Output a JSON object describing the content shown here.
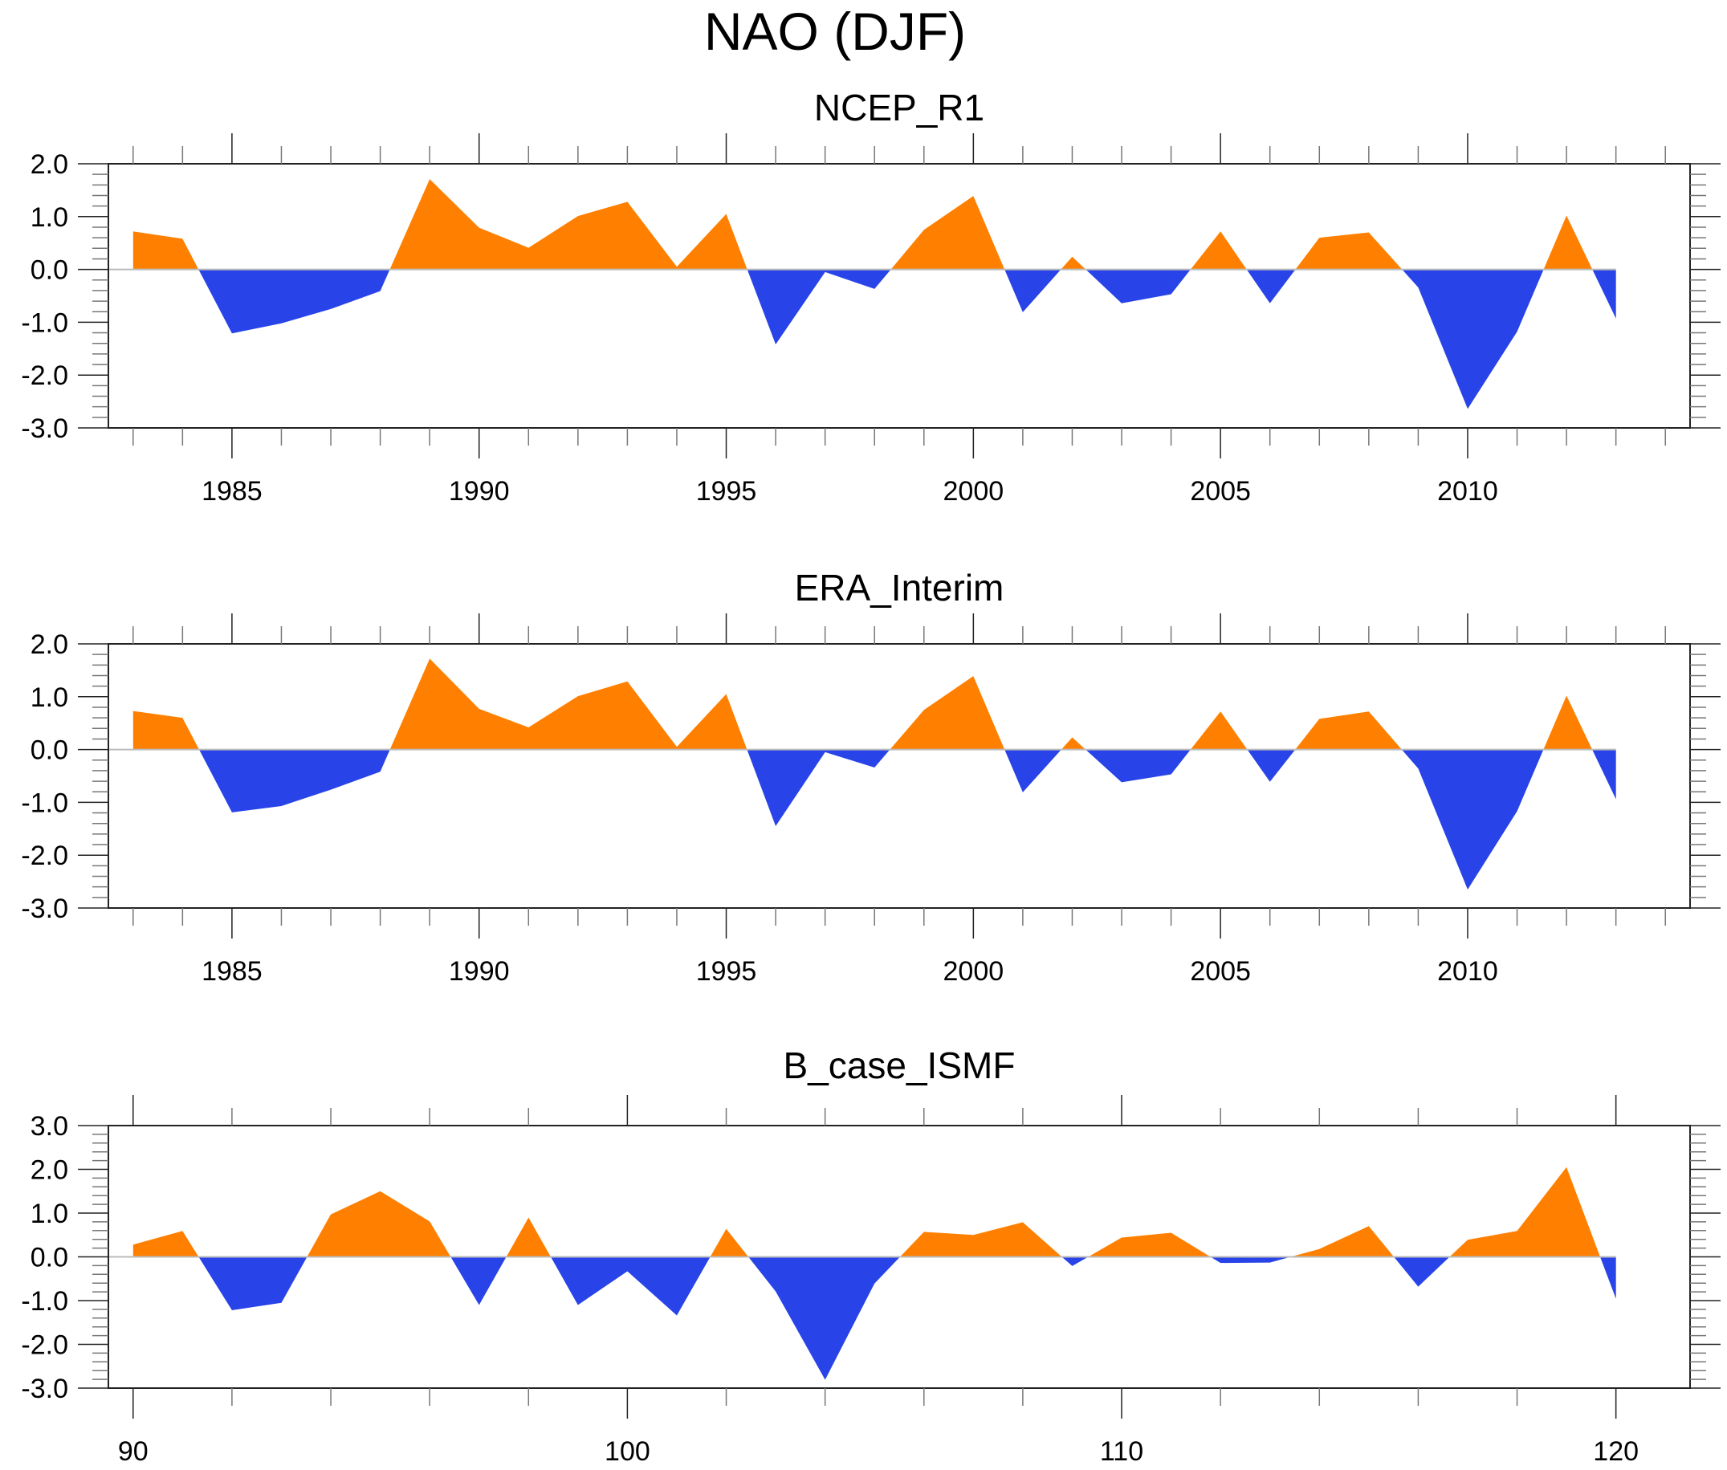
{
  "figure": {
    "title": "NAO (DJF)"
  },
  "colors": {
    "positive": "#ff8000",
    "negative": "#2844e8",
    "zero_line": "#bbbbbb",
    "axis": "#222222"
  },
  "chart_data": [
    {
      "type": "area",
      "title": "NCEP_R1",
      "xlabel": "",
      "ylabel": "",
      "x": [
        1983,
        1984,
        1985,
        1986,
        1987,
        1988,
        1989,
        1990,
        1991,
        1992,
        1993,
        1994,
        1995,
        1996,
        1997,
        1998,
        1999,
        2000,
        2001,
        2002,
        2003,
        2004,
        2005,
        2006,
        2007,
        2008,
        2009,
        2010,
        2011,
        2012,
        2013
      ],
      "values": [
        0.72,
        0.58,
        -1.21,
        -1.02,
        -0.75,
        -0.41,
        1.71,
        0.79,
        0.41,
        1.01,
        1.28,
        0.05,
        1.05,
        -1.42,
        -0.05,
        -0.37,
        0.75,
        1.39,
        -0.81,
        0.24,
        -0.64,
        -0.47,
        0.72,
        -0.64,
        0.6,
        0.7,
        -0.34,
        -2.64,
        -1.18,
        1.02,
        -0.93
      ],
      "xlim": [
        1982.5,
        2014.5
      ],
      "ylim": [
        -3.0,
        2.0
      ],
      "x_major_ticks": [
        1985,
        1990,
        1995,
        2000,
        2005,
        2010
      ],
      "x_tick_labels": [
        "1985",
        "1990",
        "1995",
        "2000",
        "2005",
        "2010"
      ],
      "x_minor_step": 1,
      "y_ticks": [
        2.0,
        1.0,
        0.0,
        -1.0,
        -2.0,
        -3.0
      ],
      "y_tick_labels": [
        "2.0",
        "1.0",
        "0.0",
        "-1.0",
        "-2.0",
        "-3.0"
      ],
      "y_minor_step": 0.2,
      "fill_above_zero": "positive",
      "fill_below_zero": "negative",
      "grid": false
    },
    {
      "type": "area",
      "title": "ERA_Interim",
      "xlabel": "",
      "ylabel": "",
      "x": [
        1983,
        1984,
        1985,
        1986,
        1987,
        1988,
        1989,
        1990,
        1991,
        1992,
        1993,
        1994,
        1995,
        1996,
        1997,
        1998,
        1999,
        2000,
        2001,
        2002,
        2003,
        2004,
        2005,
        2006,
        2007,
        2008,
        2009,
        2010,
        2011,
        2012,
        2013
      ],
      "values": [
        0.73,
        0.6,
        -1.19,
        -1.07,
        -0.76,
        -0.42,
        1.72,
        0.77,
        0.42,
        1.01,
        1.29,
        0.05,
        1.05,
        -1.45,
        -0.05,
        -0.34,
        0.75,
        1.39,
        -0.81,
        0.23,
        -0.62,
        -0.47,
        0.72,
        -0.61,
        0.58,
        0.72,
        -0.36,
        -2.65,
        -1.17,
        1.02,
        -0.94
      ],
      "xlim": [
        1982.5,
        2014.5
      ],
      "ylim": [
        -3.0,
        2.0
      ],
      "x_major_ticks": [
        1985,
        1990,
        1995,
        2000,
        2005,
        2010
      ],
      "x_tick_labels": [
        "1985",
        "1990",
        "1995",
        "2000",
        "2005",
        "2010"
      ],
      "x_minor_step": 1,
      "y_ticks": [
        2.0,
        1.0,
        0.0,
        -1.0,
        -2.0,
        -3.0
      ],
      "y_tick_labels": [
        "2.0",
        "1.0",
        "0.0",
        "-1.0",
        "-2.0",
        "-3.0"
      ],
      "y_minor_step": 0.2,
      "fill_above_zero": "positive",
      "fill_below_zero": "negative",
      "grid": false
    },
    {
      "type": "area",
      "title": "B_case_ISMF",
      "xlabel": "",
      "ylabel": "",
      "x": [
        90,
        91,
        92,
        93,
        94,
        95,
        96,
        97,
        98,
        99,
        100,
        101,
        102,
        103,
        104,
        105,
        106,
        107,
        108,
        109,
        110,
        111,
        112,
        113,
        114,
        115,
        116,
        117,
        118,
        119,
        120
      ],
      "values": [
        0.28,
        0.59,
        -1.22,
        -1.05,
        0.97,
        1.5,
        0.81,
        -1.1,
        0.9,
        -1.1,
        -0.33,
        -1.34,
        0.64,
        -0.79,
        -2.81,
        -0.61,
        0.57,
        0.5,
        0.79,
        -0.21,
        0.44,
        0.55,
        -0.14,
        -0.13,
        0.18,
        0.7,
        -0.68,
        0.39,
        0.59,
        2.05,
        -0.96
      ],
      "xlim": [
        89.5,
        121.5
      ],
      "ylim": [
        -3.0,
        3.0
      ],
      "x_major_ticks": [
        90,
        100,
        110,
        120
      ],
      "x_tick_labels": [
        "90",
        "100",
        "110",
        "120"
      ],
      "x_minor_step": 2,
      "y_ticks": [
        3.0,
        2.0,
        1.0,
        0.0,
        -1.0,
        -2.0,
        -3.0
      ],
      "y_tick_labels": [
        "3.0",
        "2.0",
        "1.0",
        "0.0",
        "-1.0",
        "-2.0",
        "-3.0"
      ],
      "y_minor_step": 0.2,
      "fill_above_zero": "positive",
      "fill_below_zero": "negative",
      "grid": false
    }
  ]
}
